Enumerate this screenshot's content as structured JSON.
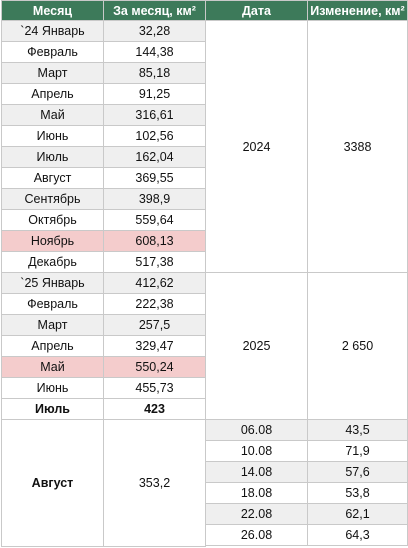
{
  "headers": [
    "Месяц",
    "За месяц, км²",
    "Дата",
    "Изменение, км²"
  ],
  "rows_2024": [
    {
      "month": "`24 Январь",
      "value": "32,28",
      "style": "alt"
    },
    {
      "month": "Февраль",
      "value": "144,38",
      "style": "white"
    },
    {
      "month": "Март",
      "value": "85,18",
      "style": "alt"
    },
    {
      "month": "Апрель",
      "value": "91,25",
      "style": "white"
    },
    {
      "month": "Май",
      "value": "316,61",
      "style": "alt"
    },
    {
      "month": "Июнь",
      "value": "102,56",
      "style": "white"
    },
    {
      "month": "Июль",
      "value": "162,04",
      "style": "alt"
    },
    {
      "month": "Август",
      "value": "369,55",
      "style": "white"
    },
    {
      "month": "Сентябрь",
      "value": "398,9",
      "style": "alt"
    },
    {
      "month": "Октябрь",
      "value": "559,64",
      "style": "white"
    },
    {
      "month": "Ноябрь",
      "value": "608,13",
      "style": "hl"
    },
    {
      "month": "Декабрь",
      "value": "517,38",
      "style": "white"
    }
  ],
  "year_2024": {
    "date": "2024",
    "change": "3388"
  },
  "rows_2025": [
    {
      "month": "`25 Январь",
      "value": "412,62",
      "style": "alt"
    },
    {
      "month": "Февраль",
      "value": "222,38",
      "style": "white"
    },
    {
      "month": "Март",
      "value": "257,5",
      "style": "alt"
    },
    {
      "month": "Апрель",
      "value": "329,47",
      "style": "white"
    },
    {
      "month": "Май",
      "value": "550,24",
      "style": "hl"
    },
    {
      "month": "Июнь",
      "value": "455,73",
      "style": "white"
    },
    {
      "month": "Июль",
      "value": "423",
      "style": "white",
      "bold": true
    }
  ],
  "year_2025": {
    "date": "2025",
    "change": "2 650"
  },
  "august": {
    "month": "Август",
    "value": "353,2",
    "entries": [
      {
        "date": "06.08",
        "change": "43,5",
        "style": "alt"
      },
      {
        "date": "10.08",
        "change": "71,9",
        "style": "white"
      },
      {
        "date": "14.08",
        "change": "57,6",
        "style": "alt"
      },
      {
        "date": "18.08",
        "change": "53,8",
        "style": "white"
      },
      {
        "date": "22.08",
        "change": "62,1",
        "style": "alt"
      },
      {
        "date": "26.08",
        "change": "64,3",
        "style": "white"
      }
    ]
  }
}
